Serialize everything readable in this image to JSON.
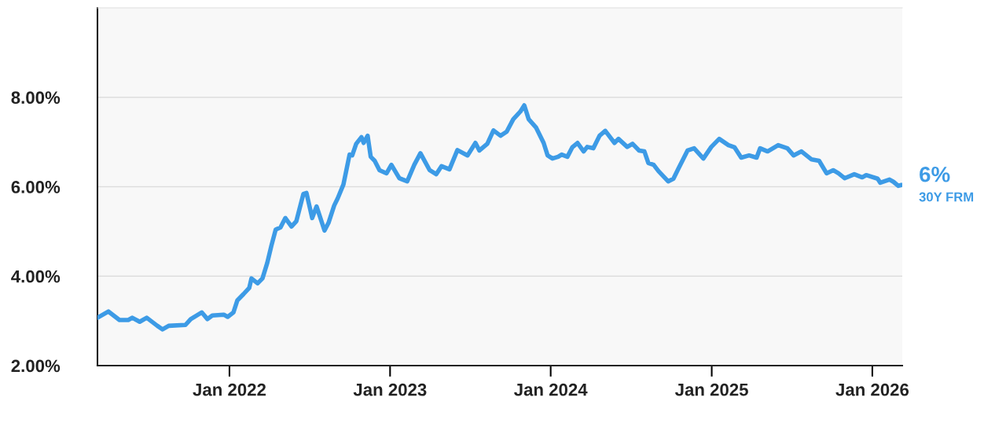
{
  "chart_data": {
    "type": "line",
    "x": [
      "2021-03-07",
      "2021-04-01",
      "2021-04-26",
      "2021-05-16",
      "2021-05-25",
      "2021-06-11",
      "2021-06-27",
      "2021-07-21",
      "2021-08-02",
      "2021-08-16",
      "2021-09-23",
      "2021-10-05",
      "2021-10-30",
      "2021-11-12",
      "2021-11-23",
      "2021-12-19",
      "2021-12-28",
      "2022-01-10",
      "2022-01-19",
      "2022-02-02",
      "2022-02-15",
      "2022-02-20",
      "2022-03-06",
      "2022-03-17",
      "2022-03-28",
      "2022-04-06",
      "2022-04-16",
      "2022-04-27",
      "2022-05-08",
      "2022-05-22",
      "2022-06-02",
      "2022-06-18",
      "2022-06-25",
      "2022-07-08",
      "2022-07-18",
      "2022-08-05",
      "2022-08-14",
      "2022-08-27",
      "2022-09-04",
      "2022-09-17",
      "2022-10-01",
      "2022-10-07",
      "2022-10-16",
      "2022-10-28",
      "2022-11-02",
      "2022-11-11",
      "2022-11-18",
      "2022-11-27",
      "2022-12-08",
      "2022-12-24",
      "2023-01-04",
      "2023-01-22",
      "2023-02-09",
      "2023-02-25",
      "2023-03-11",
      "2023-04-01",
      "2023-04-16",
      "2023-04-28",
      "2023-05-16",
      "2023-06-03",
      "2023-06-26",
      "2023-07-14",
      "2023-07-23",
      "2023-08-10",
      "2023-08-24",
      "2023-09-09",
      "2023-09-23",
      "2023-10-08",
      "2023-10-24",
      "2023-11-02",
      "2023-11-12",
      "2023-11-29",
      "2023-12-16",
      "2023-12-25",
      "2024-01-05",
      "2024-01-18",
      "2024-01-26",
      "2024-02-08",
      "2024-02-19",
      "2024-03-02",
      "2024-03-16",
      "2024-03-24",
      "2024-04-07",
      "2024-04-21",
      "2024-05-04",
      "2024-05-25",
      "2024-06-03",
      "2024-06-23",
      "2024-07-05",
      "2024-07-20",
      "2024-08-01",
      "2024-08-10",
      "2024-08-22",
      "2024-09-02",
      "2024-09-24",
      "2024-10-06",
      "2024-10-17",
      "2024-11-07",
      "2024-11-22",
      "2024-12-13",
      "2024-12-31",
      "2025-01-18",
      "2025-02-08",
      "2025-02-22",
      "2025-03-09",
      "2025-03-27",
      "2025-04-13",
      "2025-04-21",
      "2025-05-08",
      "2025-06-01",
      "2025-06-22",
      "2025-07-06",
      "2025-07-24",
      "2025-08-16",
      "2025-09-02",
      "2025-09-19",
      "2025-10-04",
      "2025-10-16",
      "2025-10-30",
      "2025-11-21",
      "2025-12-09",
      "2025-12-18",
      "2026-01-13",
      "2026-01-19",
      "2026-02-09",
      "2026-02-18",
      "2026-03-01",
      "2026-03-08"
    ],
    "series": [
      {
        "name": "30Y FRM",
        "color": "#3d9be6",
        "values": [
          3.07,
          3.21,
          3.02,
          3.02,
          3.07,
          2.98,
          3.07,
          2.89,
          2.81,
          2.89,
          2.91,
          3.04,
          3.19,
          3.04,
          3.12,
          3.14,
          3.09,
          3.19,
          3.46,
          3.6,
          3.74,
          3.95,
          3.84,
          3.95,
          4.3,
          4.67,
          5.04,
          5.09,
          5.3,
          5.11,
          5.23,
          5.84,
          5.86,
          5.3,
          5.56,
          5.02,
          5.19,
          5.58,
          5.74,
          6.05,
          6.72,
          6.7,
          6.96,
          7.11,
          6.98,
          7.14,
          6.67,
          6.58,
          6.37,
          6.3,
          6.49,
          6.19,
          6.12,
          6.49,
          6.75,
          6.37,
          6.28,
          6.46,
          6.39,
          6.82,
          6.7,
          6.98,
          6.81,
          6.96,
          7.26,
          7.14,
          7.23,
          7.51,
          7.68,
          7.82,
          7.51,
          7.32,
          6.98,
          6.7,
          6.63,
          6.67,
          6.72,
          6.67,
          6.88,
          6.98,
          6.79,
          6.89,
          6.86,
          7.14,
          7.25,
          6.98,
          7.07,
          6.89,
          6.96,
          6.81,
          6.79,
          6.53,
          6.49,
          6.35,
          6.12,
          6.18,
          6.4,
          6.81,
          6.86,
          6.63,
          6.89,
          7.07,
          6.93,
          6.88,
          6.65,
          6.7,
          6.65,
          6.86,
          6.79,
          6.93,
          6.86,
          6.7,
          6.79,
          6.61,
          6.58,
          6.3,
          6.37,
          6.3,
          6.19,
          6.28,
          6.21,
          6.26,
          6.18,
          6.09,
          6.16,
          6.11,
          6.02,
          6.04
        ]
      }
    ],
    "xlim": [
      "2021-03-07",
      "2026-03-10"
    ],
    "xticks": [
      {
        "value": "2022-01-01",
        "label": "Jan 2022"
      },
      {
        "value": "2023-01-01",
        "label": "Jan 2023"
      },
      {
        "value": "2024-01-01",
        "label": "Jan 2024"
      },
      {
        "value": "2025-01-01",
        "label": "Jan 2025"
      },
      {
        "value": "2026-01-01",
        "label": "Jan 2026"
      }
    ],
    "ylim": [
      2,
      10
    ],
    "yticks": [
      {
        "value": 2,
        "label": "2.00%"
      },
      {
        "value": 4,
        "label": "4.00%"
      },
      {
        "value": 6,
        "label": "6.00%"
      },
      {
        "value": 8,
        "label": "8.00%"
      }
    ],
    "grid": "y",
    "legend": false,
    "marker": "none",
    "line_style": "solid",
    "annotations": [
      {
        "text": "6%",
        "x": "2026-03-08",
        "y": 6.04
      }
    ]
  }
}
